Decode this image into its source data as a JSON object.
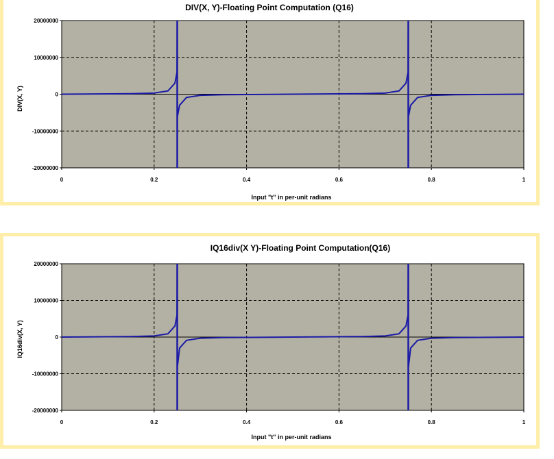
{
  "colors": {
    "panel_border": "#ffeeaa",
    "plot_bg": "#b3b1a3",
    "series": "#1a1aa6",
    "zero_line": "#000000",
    "grid": "#000000"
  },
  "chart_data": [
    {
      "type": "line",
      "title": "DIV(X, Y)-Floating Point Computation (Q16)",
      "xlabel": "Input \"t\" in per-unit radians",
      "ylabel": "DIV(X, Y)",
      "xlim": [
        0,
        1
      ],
      "ylim": [
        -20000000,
        20000000
      ],
      "xticks": [
        0,
        0.2,
        0.4,
        0.6,
        0.8,
        1
      ],
      "xtick_labels": [
        "0",
        "0.2",
        "0.4",
        "0.6",
        "0.8",
        "1"
      ],
      "yticks": [
        20000000,
        10000000,
        0,
        -10000000,
        -20000000
      ],
      "ytick_labels": [
        "20000000",
        "10000000",
        "0",
        "-10000000",
        "-20000000"
      ],
      "grid": "dashed",
      "asymptotes": [
        0.25,
        0.75
      ],
      "series": [
        {
          "x": [
            0,
            0.15,
            0.2,
            0.23,
            0.245,
            0.2495,
            0.25,
            0.2505,
            0.255,
            0.27,
            0.3,
            0.35,
            0.5,
            0.65,
            0.7,
            0.73,
            0.745,
            0.7495,
            0.75,
            0.7505,
            0.755,
            0.77,
            0.8,
            0.85,
            1
          ],
          "y": [
            0,
            150000,
            300000,
            900000,
            3000000,
            6000000,
            20000000,
            -6000000,
            -3000000,
            -900000,
            -300000,
            -150000,
            0,
            150000,
            300000,
            900000,
            3000000,
            6000000,
            20000000,
            -6000000,
            -3000000,
            -900000,
            -300000,
            -150000,
            0
          ]
        }
      ]
    },
    {
      "type": "line",
      "title": "IQ16div(X Y)-Floating Point Computation(Q16)",
      "xlabel": "Input \"t\" in per-unit radians",
      "ylabel": "IQ16div(X, Y)",
      "xlim": [
        0,
        1
      ],
      "ylim": [
        -20000000,
        20000000
      ],
      "xticks": [
        0,
        0.2,
        0.4,
        0.6,
        0.8,
        1
      ],
      "xtick_labels": [
        "0",
        "0.2",
        "0.4",
        "0.6",
        "0.8",
        "1"
      ],
      "yticks": [
        20000000,
        10000000,
        0,
        -10000000,
        -20000000
      ],
      "ytick_labels": [
        "20000000",
        "10000000",
        "0",
        "-10000000",
        "-20000000"
      ],
      "grid": "dashed",
      "asymptotes": [
        0.25,
        0.75
      ],
      "series": [
        {
          "x": [
            0,
            0.15,
            0.2,
            0.23,
            0.245,
            0.2495,
            0.25,
            0.2505,
            0.255,
            0.27,
            0.3,
            0.35,
            0.5,
            0.65,
            0.7,
            0.73,
            0.745,
            0.7495,
            0.75,
            0.7505,
            0.755,
            0.77,
            0.8,
            0.85,
            1
          ],
          "y": [
            0,
            150000,
            300000,
            900000,
            3000000,
            6000000,
            20000000,
            -8000000,
            -3000000,
            -900000,
            -300000,
            -150000,
            0,
            150000,
            300000,
            900000,
            3000000,
            6000000,
            20000000,
            -8000000,
            -3000000,
            -900000,
            -300000,
            -150000,
            0
          ]
        }
      ]
    }
  ]
}
